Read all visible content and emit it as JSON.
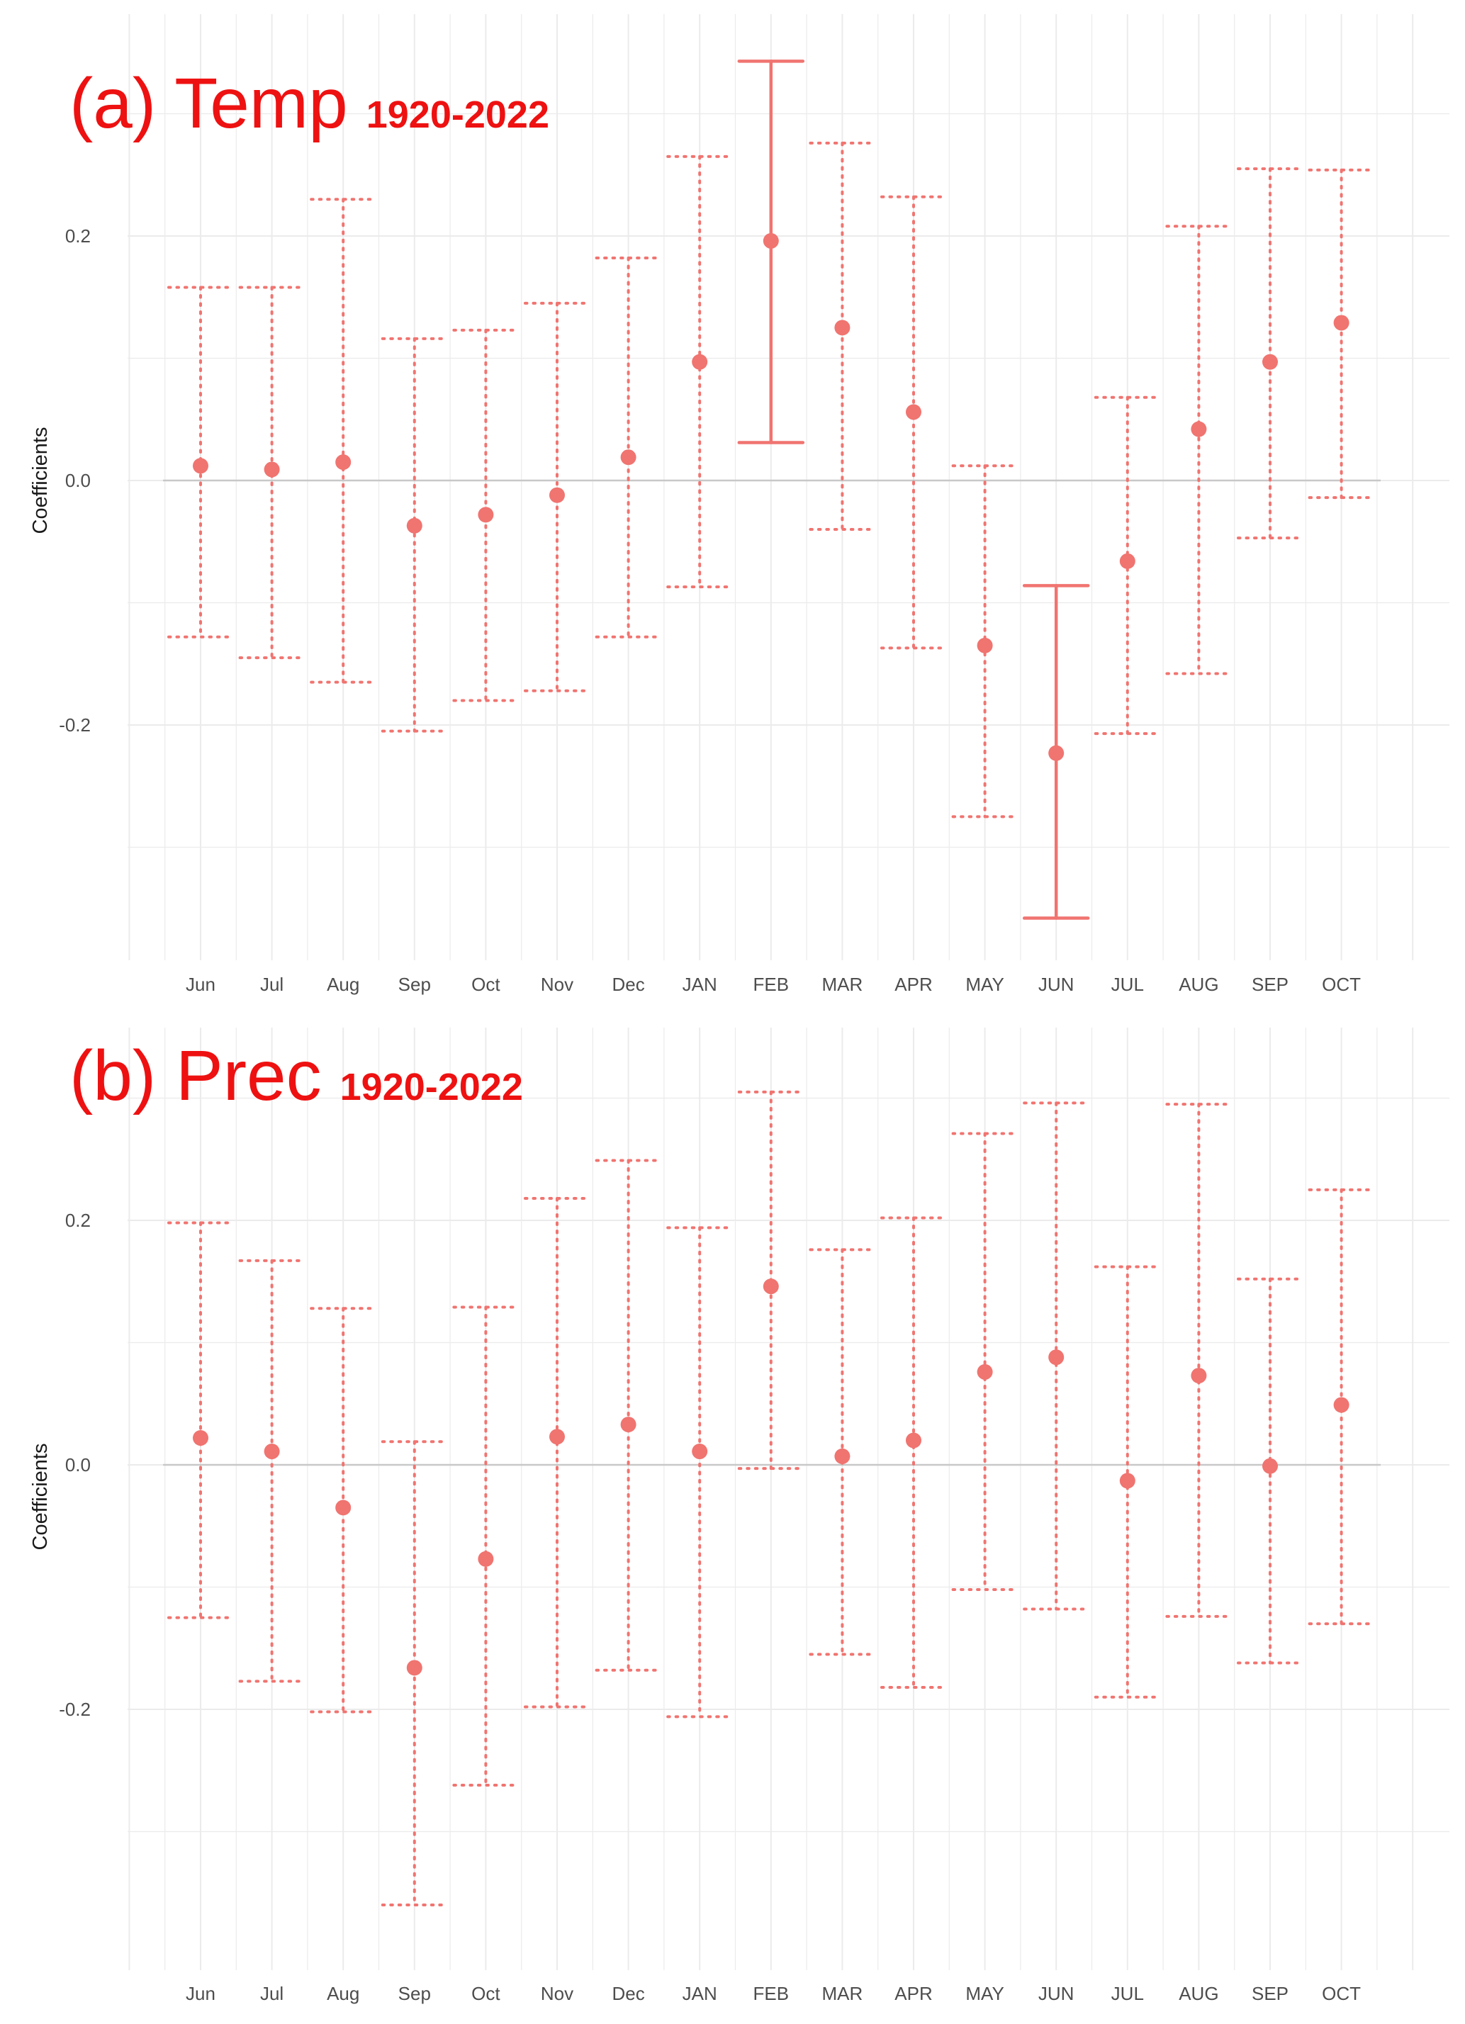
{
  "colors": {
    "point": "#f07470",
    "grid": "#ebebeb",
    "zero_line": "#c8c8c8",
    "title": "#ee1111"
  },
  "chart_data": [
    {
      "type": "errorbar",
      "title": "(a) Temp",
      "subtitle": "1920-2022",
      "xlabel": "",
      "ylabel": "Coefficients",
      "ylim": [
        -0.39,
        0.39
      ],
      "yticks": [
        "0.2",
        "0.0",
        "-0.2"
      ],
      "grid": true,
      "categories": [
        "Jun",
        "Jul",
        "Aug",
        "Sep",
        "Oct",
        "Nov",
        "Dec",
        "JAN",
        "FEB",
        "MAR",
        "APR",
        "MAY",
        "JUN",
        "JUL",
        "AUG",
        "SEP",
        "OCT"
      ],
      "values": [
        0.012,
        0.009,
        0.015,
        -0.037,
        -0.028,
        -0.012,
        0.019,
        0.097,
        0.196,
        0.125,
        0.056,
        -0.135,
        -0.223,
        -0.066,
        0.042,
        0.097,
        0.129
      ],
      "lower": [
        -0.128,
        -0.145,
        -0.165,
        -0.205,
        -0.18,
        -0.172,
        -0.128,
        -0.087,
        0.031,
        -0.04,
        -0.137,
        -0.275,
        -0.358,
        -0.207,
        -0.158,
        -0.047,
        -0.014
      ],
      "upper": [
        0.158,
        0.158,
        0.23,
        0.116,
        0.123,
        0.145,
        0.182,
        0.265,
        0.343,
        0.276,
        0.232,
        0.012,
        -0.086,
        0.068,
        0.208,
        0.255,
        0.254
      ],
      "significant": [
        false,
        false,
        false,
        false,
        false,
        false,
        false,
        false,
        true,
        false,
        false,
        false,
        true,
        false,
        false,
        false,
        false
      ]
    },
    {
      "type": "errorbar",
      "title": "(b) Prec",
      "subtitle": "1920-2022",
      "xlabel": "",
      "ylabel": "Coefficients",
      "ylim": [
        -0.39,
        0.39
      ],
      "yticks": [
        "0.2",
        "0.0",
        "-0.2"
      ],
      "grid": true,
      "categories": [
        "Jun",
        "Jul",
        "Aug",
        "Sep",
        "Oct",
        "Nov",
        "Dec",
        "JAN",
        "FEB",
        "MAR",
        "APR",
        "MAY",
        "JUN",
        "JUL",
        "AUG",
        "SEP",
        "OCT"
      ],
      "values": [
        0.022,
        0.011,
        -0.035,
        -0.166,
        -0.077,
        0.023,
        0.033,
        0.011,
        0.146,
        0.007,
        0.02,
        0.076,
        0.088,
        -0.013,
        0.073,
        -0.001,
        0.049
      ],
      "lower": [
        -0.125,
        -0.177,
        -0.202,
        -0.36,
        -0.262,
        -0.198,
        -0.168,
        -0.206,
        -0.003,
        -0.155,
        -0.182,
        -0.102,
        -0.118,
        -0.19,
        -0.124,
        -0.162,
        -0.13
      ],
      "upper": [
        0.198,
        0.167,
        0.128,
        0.019,
        0.129,
        0.218,
        0.249,
        0.194,
        0.305,
        0.176,
        0.202,
        0.271,
        0.296,
        0.162,
        0.295,
        0.152,
        0.225
      ],
      "significant": [
        false,
        false,
        false,
        false,
        false,
        false,
        false,
        false,
        false,
        false,
        false,
        false,
        false,
        false,
        false,
        false,
        false
      ]
    }
  ]
}
